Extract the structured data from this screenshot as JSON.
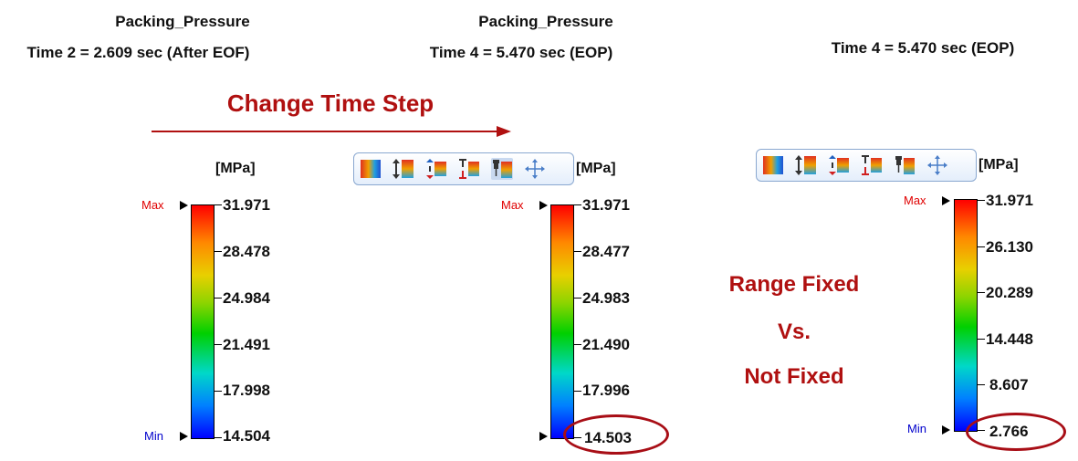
{
  "panels": [
    {
      "title": "Packing_Pressure",
      "time": "Time 2 = 2.609 sec (After EOF)",
      "unit": "[MPa]",
      "max_label": "Max",
      "min_label": "Min",
      "values": [
        "31.971",
        "28.478",
        "24.984",
        "21.491",
        "17.998",
        "14.504"
      ]
    },
    {
      "title": "Packing_Pressure",
      "time": "Time 4 = 5.470 sec (EOP)",
      "unit": "[MPa]",
      "max_label": "Max",
      "min_label": "Min",
      "values": [
        "31.971",
        "28.477",
        "24.983",
        "21.490",
        "17.996",
        "14.503"
      ]
    },
    {
      "time": "Time 4 = 5.470 sec (EOP)",
      "unit": "[MPa]",
      "max_label": "Max",
      "min_label": "Min",
      "values": [
        "31.971",
        "26.130",
        "20.289",
        "14.448",
        "8.607",
        "2.766"
      ]
    }
  ],
  "annotations": {
    "change_time_step": "Change Time Step",
    "comparison_line1": "Range Fixed",
    "comparison_line2": "Vs.",
    "comparison_line3": "Not Fixed"
  },
  "toolbar_icons": [
    "color-scale-icon",
    "stretch-range-icon",
    "expand-range-icon",
    "fit-range-icon",
    "pin-range-icon",
    "move-icon"
  ],
  "colors": {
    "accent_red": "#b01010",
    "max_red": "#e00000",
    "min_blue": "#0000cc"
  }
}
